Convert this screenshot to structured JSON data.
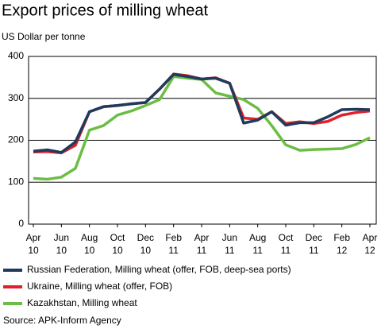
{
  "chart_data": {
    "type": "line",
    "title": "Export prices of milling wheat",
    "y_axis_label": "US Dollar per tonne",
    "source": "Source: APK-Inform Agency",
    "categories": [
      "Apr 10",
      null,
      "Jun 10",
      null,
      "Aug 10",
      null,
      "Oct 10",
      null,
      "Dec 10",
      null,
      "Feb 11",
      null,
      "Apr 11",
      null,
      "Jun 11",
      null,
      "Aug 11",
      null,
      "Oct 11",
      null,
      "Dec 11",
      null,
      "Feb 12",
      null,
      "Apr 12"
    ],
    "series": [
      {
        "name": "Russian Federation, Milling wheat (offer, FOB, deep-sea ports)",
        "color": "#1f3b5c",
        "values": [
          174,
          177,
          171,
          196,
          268,
          280,
          283,
          287,
          290,
          322,
          357,
          352,
          346,
          348,
          336,
          241,
          248,
          268,
          236,
          242,
          242,
          256,
          273,
          274,
          273
        ]
      },
      {
        "name": "Ukraine, Milling wheat (offer, FOB)",
        "color": "#e2202a",
        "values": [
          172,
          173,
          170,
          188,
          268,
          280,
          283,
          287,
          290,
          322,
          358,
          354,
          346,
          349,
          336,
          253,
          250,
          268,
          240,
          244,
          240,
          245,
          260,
          266,
          270
        ]
      },
      {
        "name": "Kazakhstan, Milling wheat",
        "color": "#6cbd45",
        "values": [
          109,
          107,
          112,
          133,
          224,
          235,
          260,
          270,
          283,
          297,
          352,
          348,
          345,
          313,
          305,
          297,
          276,
          235,
          189,
          176,
          178,
          179,
          180,
          190,
          206
        ]
      }
    ],
    "ylim": [
      0,
      400
    ],
    "yticks": [
      0,
      100,
      200,
      300,
      400
    ],
    "grid": true
  }
}
